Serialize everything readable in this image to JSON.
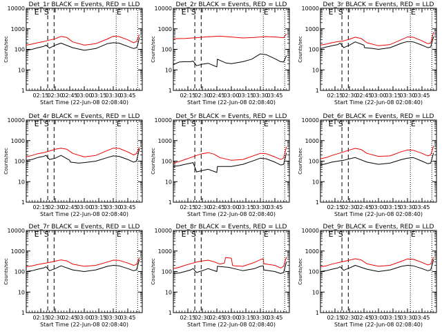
{
  "figure": {
    "background": "#ffffff",
    "axis_color": "#000000",
    "events_color": "#000000",
    "lld_color": "#ee0000"
  },
  "shared": {
    "ylabel": "Counts/sec",
    "xlabel": "Start Time (22-Jun-08 02:08:40)",
    "yticks": [
      "1",
      "10",
      "100",
      "1000",
      "10000"
    ],
    "xticks": [
      "02:15",
      "02:30",
      "02:45",
      "03:00",
      "03:15",
      "03:30",
      "03:45"
    ],
    "markers": [
      {
        "label": "E",
        "x": 2.18
      },
      {
        "label": "S",
        "x": 2.35
      },
      {
        "label": "E",
        "x": 3.6
      }
    ]
  },
  "chart_data": [
    {
      "type": "line",
      "title": "Det_1r BLACK = Events, RED = LLD",
      "xlabel": "Start Time (22-Jun-08 02:08:40)",
      "ylabel": "Counts/sec",
      "xlim": [
        2.0,
        4.0
      ],
      "ylim": [
        1,
        10000
      ],
      "yscale": "log",
      "dashed_vlines": [
        2.37,
        2.48
      ],
      "dotted_vlines": [
        3.55,
        3.92
      ],
      "series": [
        {
          "name": "Events",
          "color": "#000000",
          "x": [
            2.0,
            2.1,
            2.2,
            2.3,
            2.34,
            2.4,
            2.5,
            2.6,
            2.8,
            3.0,
            3.2,
            3.4,
            3.5,
            3.6,
            3.75,
            3.85,
            3.9,
            3.92,
            3.95
          ],
          "y": [
            90,
            100,
            120,
            140,
            160,
            115,
            160,
            200,
            120,
            90,
            110,
            190,
            210,
            200,
            140,
            110,
            120,
            160,
            380
          ]
        },
        {
          "name": "LLD",
          "color": "#ee0000",
          "x": [
            2.0,
            2.1,
            2.2,
            2.3,
            2.4,
            2.5,
            2.6,
            2.7,
            2.8,
            3.0,
            3.2,
            3.4,
            3.5,
            3.6,
            3.75,
            3.85,
            3.9,
            3.95
          ],
          "y": [
            160,
            180,
            210,
            240,
            280,
            330,
            430,
            380,
            230,
            160,
            190,
            320,
            440,
            420,
            290,
            210,
            240,
            520
          ]
        }
      ]
    },
    {
      "type": "line",
      "title": "Det_2r BLACK = Events, RED = LLD",
      "xlabel": "Start Time (22-Jun-08 02:08:40)",
      "ylabel": "Counts/sec",
      "xlim": [
        2.0,
        4.0
      ],
      "ylim": [
        1,
        10000
      ],
      "yscale": "log",
      "dashed_vlines": [
        2.37,
        2.48
      ],
      "dotted_vlines": [
        3.55,
        3.92
      ],
      "series": [
        {
          "name": "Events",
          "color": "#000000",
          "x": [
            2.0,
            2.1,
            2.2,
            2.3,
            2.34,
            2.4,
            2.5,
            2.6,
            2.75,
            2.76,
            2.9,
            3.0,
            3.2,
            3.35,
            3.5,
            3.6,
            3.75,
            3.85,
            3.9,
            3.95
          ],
          "y": [
            18,
            24,
            25,
            25,
            27,
            16,
            19,
            21,
            14,
            33,
            22,
            20,
            25,
            33,
            60,
            55,
            35,
            25,
            24,
            50
          ]
        },
        {
          "name": "LLD",
          "color": "#ee0000",
          "x": [
            2.0,
            2.2,
            2.4,
            2.6,
            2.8,
            3.0,
            3.2,
            3.4,
            3.6,
            3.8,
            3.9,
            3.95
          ],
          "y": [
            330,
            340,
            370,
            410,
            440,
            400,
            360,
            380,
            420,
            390,
            370,
            560
          ]
        }
      ]
    },
    {
      "type": "line",
      "title": "Det_3r BLACK = Events, RED = LLD",
      "xlabel": "Start Time (22-Jun-08 02:08:40)",
      "ylabel": "Counts/sec",
      "xlim": [
        2.0,
        4.0
      ],
      "ylim": [
        1,
        10000
      ],
      "yscale": "log",
      "dashed_vlines": [
        2.37,
        2.48
      ],
      "dotted_vlines": [
        3.55,
        3.92
      ],
      "series": [
        {
          "name": "Events",
          "color": "#000000",
          "x": [
            2.0,
            2.1,
            2.2,
            2.3,
            2.34,
            2.4,
            2.5,
            2.6,
            2.75,
            2.76,
            2.9,
            3.0,
            3.2,
            3.4,
            3.5,
            3.6,
            3.75,
            3.85,
            3.9,
            3.95
          ],
          "y": [
            110,
            130,
            150,
            170,
            200,
            120,
            160,
            230,
            160,
            120,
            110,
            100,
            120,
            200,
            240,
            230,
            160,
            120,
            130,
            420
          ]
        },
        {
          "name": "LLD",
          "color": "#ee0000",
          "x": [
            2.0,
            2.1,
            2.2,
            2.3,
            2.4,
            2.5,
            2.6,
            2.7,
            2.8,
            3.0,
            3.2,
            3.4,
            3.5,
            3.6,
            3.75,
            3.85,
            3.9,
            3.95
          ],
          "y": [
            160,
            180,
            210,
            240,
            260,
            310,
            390,
            340,
            210,
            150,
            170,
            300,
            400,
            390,
            260,
            190,
            200,
            700
          ]
        }
      ]
    },
    {
      "type": "line",
      "title": "Det_4r BLACK = Events, RED = LLD",
      "xlabel": "Start Time (22-Jun-08 02:08:40)",
      "ylabel": "Counts/sec",
      "xlim": [
        2.0,
        4.0
      ],
      "ylim": [
        1,
        10000
      ],
      "yscale": "log",
      "dashed_vlines": [
        2.37,
        2.48
      ],
      "dotted_vlines": [
        3.55,
        3.92
      ],
      "series": [
        {
          "name": "Events",
          "color": "#000000",
          "x": [
            2.0,
            2.1,
            2.2,
            2.3,
            2.34,
            2.4,
            2.5,
            2.6,
            2.75,
            2.76,
            2.9,
            3.0,
            3.2,
            3.4,
            3.5,
            3.6,
            3.75,
            3.85,
            3.9,
            3.95
          ],
          "y": [
            110,
            120,
            150,
            170,
            190,
            120,
            140,
            190,
            110,
            90,
            80,
            85,
            100,
            150,
            180,
            170,
            120,
            90,
            100,
            400
          ]
        },
        {
          "name": "LLD",
          "color": "#ee0000",
          "x": [
            2.0,
            2.1,
            2.2,
            2.3,
            2.4,
            2.5,
            2.6,
            2.7,
            2.8,
            3.0,
            3.2,
            3.4,
            3.5,
            3.6,
            3.75,
            3.85,
            3.9,
            3.95
          ],
          "y": [
            160,
            190,
            230,
            260,
            310,
            380,
            430,
            380,
            240,
            160,
            190,
            330,
            430,
            420,
            280,
            200,
            230,
            480
          ]
        }
      ]
    },
    {
      "type": "line",
      "title": "Det_5r BLACK = Events, RED = LLD",
      "xlabel": "Start Time (22-Jun-08 02:08:40)",
      "ylabel": "Counts/sec",
      "xlim": [
        2.0,
        4.0
      ],
      "ylim": [
        1,
        10000
      ],
      "yscale": "log",
      "dashed_vlines": [
        2.37,
        2.48
      ],
      "dotted_vlines": [
        3.55,
        3.92
      ],
      "series": [
        {
          "name": "Events",
          "color": "#000000",
          "x": [
            2.0,
            2.1,
            2.2,
            2.3,
            2.34,
            2.4,
            2.5,
            2.6,
            2.75,
            2.76,
            2.9,
            3.0,
            3.2,
            3.4,
            3.5,
            3.6,
            3.75,
            3.85,
            3.9,
            3.95
          ],
          "y": [
            55,
            60,
            70,
            80,
            85,
            30,
            35,
            40,
            28,
            55,
            55,
            55,
            70,
            110,
            140,
            130,
            90,
            65,
            70,
            250
          ]
        },
        {
          "name": "LLD",
          "color": "#ee0000",
          "x": [
            2.0,
            2.1,
            2.2,
            2.3,
            2.4,
            2.5,
            2.6,
            2.7,
            2.8,
            3.0,
            3.2,
            3.4,
            3.5,
            3.6,
            3.75,
            3.85,
            3.9,
            3.95
          ],
          "y": [
            80,
            95,
            120,
            150,
            190,
            230,
            260,
            220,
            150,
            110,
            120,
            190,
            240,
            230,
            160,
            120,
            140,
            500
          ]
        }
      ]
    },
    {
      "type": "line",
      "title": "Det_6r BLACK = Events, RED = LLD",
      "xlabel": "Start Time (22-Jun-08 02:08:40)",
      "ylabel": "Counts/sec",
      "xlim": [
        2.0,
        4.0
      ],
      "ylim": [
        1,
        10000
      ],
      "yscale": "log",
      "dashed_vlines": [
        2.37,
        2.48
      ],
      "dotted_vlines": [
        3.55,
        3.92
      ],
      "series": [
        {
          "name": "Events",
          "color": "#000000",
          "x": [
            2.0,
            2.1,
            2.2,
            2.3,
            2.4,
            2.5,
            2.6,
            2.8,
            3.0,
            3.2,
            3.4,
            3.5,
            3.6,
            3.75,
            3.85,
            3.9,
            3.95
          ],
          "y": [
            65,
            75,
            90,
            100,
            110,
            130,
            150,
            90,
            70,
            80,
            120,
            140,
            150,
            100,
            75,
            80,
            250
          ]
        },
        {
          "name": "LLD",
          "color": "#ee0000",
          "x": [
            2.0,
            2.1,
            2.2,
            2.3,
            2.4,
            2.5,
            2.6,
            2.7,
            2.8,
            3.0,
            3.2,
            3.4,
            3.5,
            3.6,
            3.75,
            3.85,
            3.9,
            3.95
          ],
          "y": [
            130,
            150,
            190,
            230,
            280,
            350,
            420,
            370,
            240,
            170,
            180,
            290,
            350,
            340,
            240,
            180,
            200,
            550
          ]
        }
      ]
    },
    {
      "type": "line",
      "title": "Det_7r BLACK = Events, RED = LLD",
      "xlabel": "Start Time (22-Jun-08 02:08:40)",
      "ylabel": "Counts/sec",
      "xlim": [
        2.0,
        4.0
      ],
      "ylim": [
        1,
        10000
      ],
      "yscale": "log",
      "dashed_vlines": [
        2.37,
        2.48
      ],
      "dotted_vlines": [
        3.55,
        3.92
      ],
      "series": [
        {
          "name": "Events",
          "color": "#000000",
          "x": [
            2.0,
            2.1,
            2.2,
            2.3,
            2.34,
            2.4,
            2.5,
            2.6,
            2.8,
            3.0,
            3.2,
            3.4,
            3.5,
            3.6,
            3.75,
            3.85,
            3.9,
            3.95
          ],
          "y": [
            100,
            110,
            130,
            150,
            170,
            110,
            140,
            190,
            120,
            100,
            120,
            180,
            200,
            190,
            140,
            110,
            120,
            380
          ]
        },
        {
          "name": "LLD",
          "color": "#ee0000",
          "x": [
            2.0,
            2.1,
            2.2,
            2.3,
            2.4,
            2.5,
            2.6,
            2.7,
            2.8,
            3.0,
            3.2,
            3.4,
            3.5,
            3.6,
            3.75,
            3.85,
            3.9,
            3.95
          ],
          "y": [
            170,
            190,
            220,
            250,
            280,
            320,
            370,
            330,
            230,
            180,
            200,
            290,
            360,
            350,
            260,
            200,
            220,
            480
          ]
        }
      ]
    },
    {
      "type": "line",
      "title": "Det_8r BLACK = Events, RED = LLD",
      "xlabel": "Start Time (22-Jun-08 02:08:40)",
      "ylabel": "Counts/sec",
      "xlim": [
        2.0,
        4.0
      ],
      "ylim": [
        1,
        10000
      ],
      "yscale": "log",
      "dashed_vlines": [
        2.37,
        2.48
      ],
      "dotted_vlines": [
        3.55,
        3.92
      ],
      "series": [
        {
          "name": "Events",
          "color": "#000000",
          "x": [
            2.0,
            2.1,
            2.2,
            2.3,
            2.34,
            2.4,
            2.5,
            2.6,
            2.75,
            2.76,
            2.85,
            2.95,
            3.0,
            3.2,
            3.4,
            3.5,
            3.55,
            3.56,
            3.75,
            3.85,
            3.9,
            3.95
          ],
          "y": [
            80,
            85,
            100,
            120,
            140,
            90,
            110,
            140,
            100,
            180,
            170,
            160,
            150,
            110,
            140,
            180,
            190,
            120,
            100,
            80,
            90,
            300
          ]
        },
        {
          "name": "LLD",
          "color": "#ee0000",
          "x": [
            2.0,
            2.1,
            2.2,
            2.3,
            2.4,
            2.5,
            2.6,
            2.7,
            2.8,
            2.88,
            2.9,
            3.0,
            3.02,
            3.05,
            3.2,
            3.4,
            3.5,
            3.55,
            3.56,
            3.75,
            3.85,
            3.9,
            3.95
          ],
          "y": [
            140,
            160,
            200,
            240,
            290,
            330,
            360,
            300,
            230,
            260,
            480,
            450,
            200,
            190,
            180,
            280,
            380,
            420,
            240,
            200,
            150,
            180,
            500
          ]
        }
      ]
    },
    {
      "type": "line",
      "title": "Det_9r BLACK = Events, RED = LLD",
      "xlabel": "Start Time (22-Jun-08 02:08:40)",
      "ylabel": "Counts/sec",
      "xlim": [
        2.0,
        4.0
      ],
      "ylim": [
        1,
        10000
      ],
      "yscale": "log",
      "dashed_vlines": [
        2.37,
        2.48
      ],
      "dotted_vlines": [
        3.55,
        3.92
      ],
      "series": [
        {
          "name": "Events",
          "color": "#000000",
          "x": [
            2.0,
            2.1,
            2.2,
            2.3,
            2.34,
            2.4,
            2.5,
            2.6,
            2.8,
            3.0,
            3.2,
            3.4,
            3.5,
            3.6,
            3.75,
            3.85,
            3.9,
            3.95
          ],
          "y": [
            100,
            110,
            130,
            150,
            170,
            115,
            150,
            200,
            130,
            100,
            120,
            180,
            200,
            190,
            140,
            110,
            120,
            380
          ]
        },
        {
          "name": "LLD",
          "color": "#ee0000",
          "x": [
            2.0,
            2.1,
            2.2,
            2.3,
            2.4,
            2.5,
            2.6,
            2.7,
            2.8,
            3.0,
            3.2,
            3.4,
            3.5,
            3.6,
            3.75,
            3.85,
            3.9,
            3.95
          ],
          "y": [
            170,
            190,
            230,
            270,
            310,
            360,
            420,
            370,
            240,
            180,
            200,
            320,
            410,
            400,
            280,
            210,
            230,
            500
          ]
        }
      ]
    }
  ]
}
